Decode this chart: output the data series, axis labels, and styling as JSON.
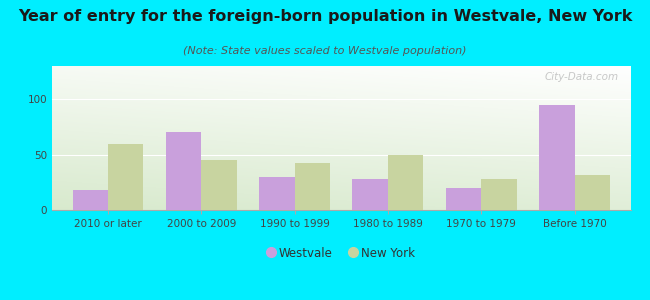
{
  "title": "Year of entry for the foreign-born population in Westvale, New York",
  "subtitle": "(Note: State values scaled to Westvale population)",
  "categories": [
    "2010 or later",
    "2000 to 2009",
    "1990 to 1999",
    "1980 to 1989",
    "1970 to 1979",
    "Before 1970"
  ],
  "westvale": [
    18,
    70,
    30,
    28,
    20,
    95
  ],
  "new_york": [
    60,
    45,
    42,
    50,
    28,
    32
  ],
  "westvale_color": "#c9a0dc",
  "new_york_color": "#c8d4a0",
  "background_outer": "#00eeff",
  "ylim": [
    0,
    130
  ],
  "yticks": [
    0,
    50,
    100
  ],
  "bar_width": 0.38,
  "legend_labels": [
    "Westvale",
    "New York"
  ],
  "title_fontsize": 11.5,
  "subtitle_fontsize": 8,
  "tick_fontsize": 7.5,
  "legend_fontsize": 8.5,
  "watermark": "City-Data.com"
}
